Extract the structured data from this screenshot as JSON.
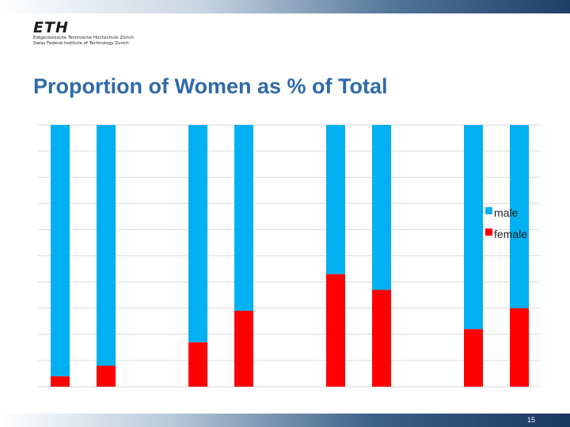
{
  "logo": {
    "mark": "ETH",
    "line1": "Eidgenössische Technische Hochschule Zürich",
    "line2": "Swiss Federal Institute of Technology Zurich"
  },
  "slide": {
    "title": "Proportion of Women as % of Total",
    "page_number": "15"
  },
  "colors": {
    "male": "#00b0f0",
    "female": "#ff0000",
    "title": "#2e6aa8"
  },
  "chart_data": {
    "type": "bar",
    "stacked": true,
    "percent_stacked": true,
    "grid": true,
    "legend": "right",
    "ylim": [
      0,
      100
    ],
    "categories": [
      "",
      "",
      "",
      "",
      "",
      "",
      "",
      ""
    ],
    "groups": [
      [
        0,
        1
      ],
      [
        2,
        3
      ],
      [
        4,
        5
      ],
      [
        6,
        7
      ]
    ],
    "series": [
      {
        "name": "female",
        "color": "#ff0000",
        "values": [
          4,
          8,
          17,
          29,
          43,
          37,
          22,
          30
        ]
      },
      {
        "name": "male",
        "color": "#00b0f0",
        "values": [
          96,
          92,
          83,
          71,
          57,
          63,
          78,
          70
        ]
      }
    ]
  }
}
